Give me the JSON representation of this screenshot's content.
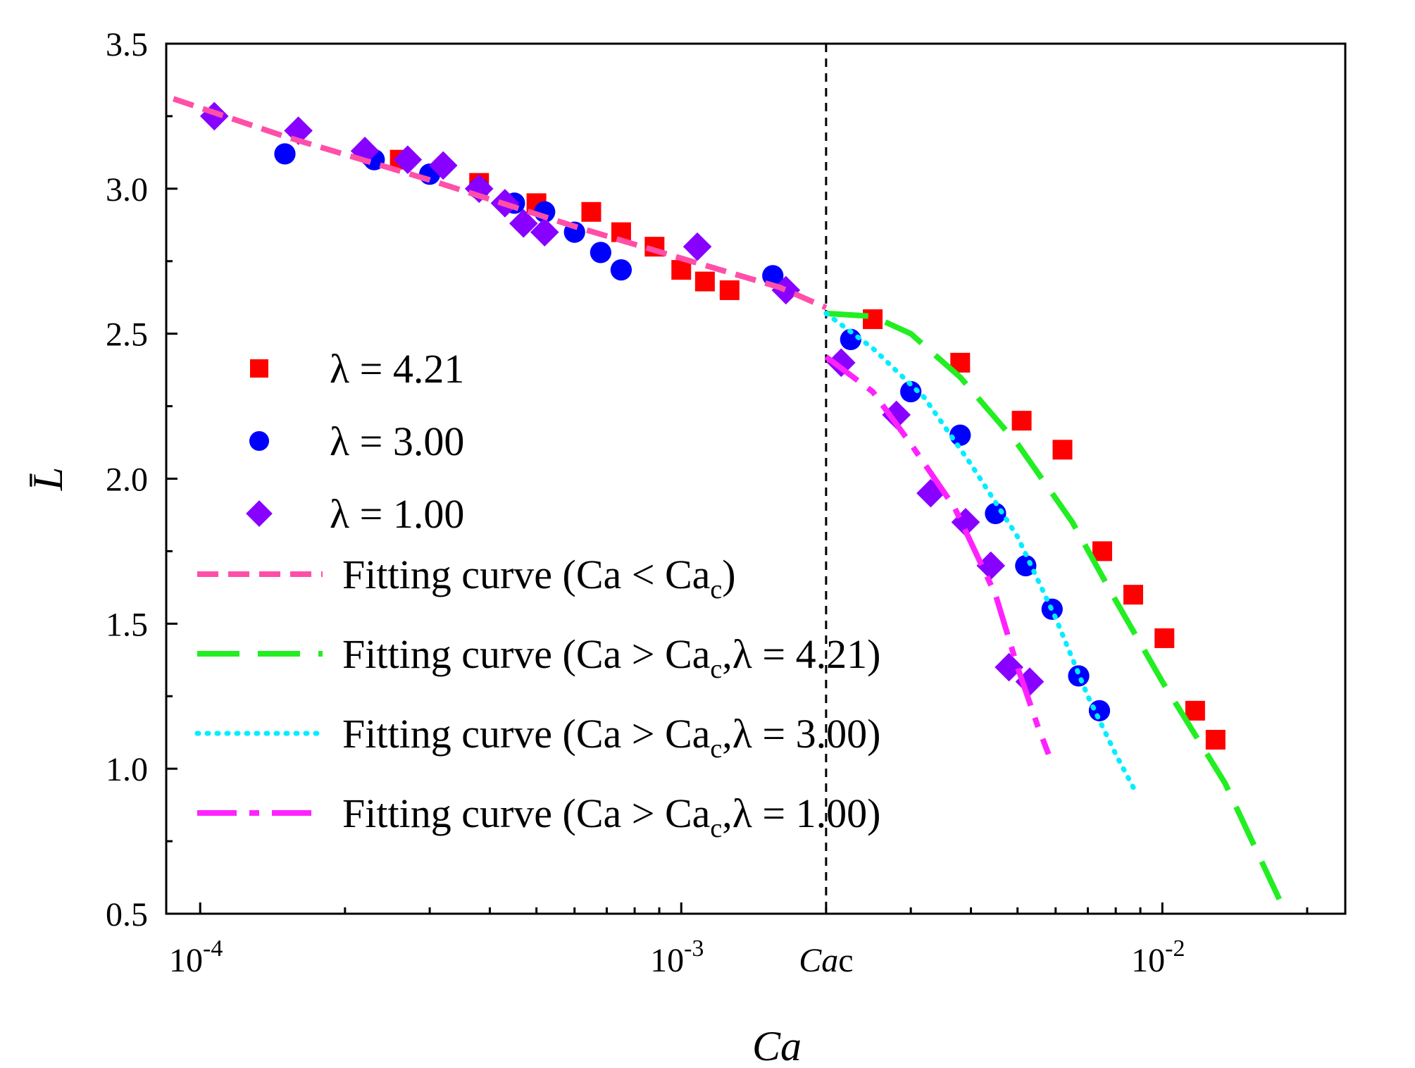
{
  "chart_data": {
    "type": "scatter",
    "x_scale": "log",
    "xlim": [
      8.5e-05,
      0.024
    ],
    "ylim": [
      0.5,
      3.5
    ],
    "xlabel": "Ca",
    "ylabel": "L̄",
    "x_ticks": [
      {
        "value": 0.0001,
        "base": "10",
        "exp": "-4"
      },
      {
        "value": 0.001,
        "base": "10",
        "exp": "-3"
      },
      {
        "value": 0.01,
        "base": "10",
        "exp": "-2"
      }
    ],
    "x_minor_ticks": [
      0.0002,
      0.0003,
      0.0004,
      0.0005,
      0.0006,
      0.0007,
      0.0008,
      0.0009,
      0.002,
      0.003,
      0.004,
      0.005,
      0.006,
      0.007,
      0.008,
      0.009,
      0.02
    ],
    "y_ticks": [
      "0.5",
      "1.0",
      "1.5",
      "2.0",
      "2.5",
      "3.0",
      "3.5"
    ],
    "critical_line": {
      "x": 0.002,
      "label_italic": "Ca",
      "label_sub": "c"
    },
    "series": [
      {
        "name": "λ = 4.21",
        "marker": "square",
        "color": "#ff0000",
        "points": [
          [
            0.00026,
            3.1
          ],
          [
            0.00038,
            3.02
          ],
          [
            0.0005,
            2.95
          ],
          [
            0.00065,
            2.92
          ],
          [
            0.00075,
            2.85
          ],
          [
            0.00088,
            2.8
          ],
          [
            0.001,
            2.72
          ],
          [
            0.00112,
            2.68
          ],
          [
            0.00126,
            2.65
          ],
          [
            0.0025,
            2.55
          ],
          [
            0.0038,
            2.4
          ],
          [
            0.0051,
            2.2
          ],
          [
            0.0062,
            2.1
          ],
          [
            0.0075,
            1.75
          ],
          [
            0.0087,
            1.6
          ],
          [
            0.0101,
            1.45
          ],
          [
            0.0117,
            1.2
          ],
          [
            0.0129,
            1.1
          ]
        ]
      },
      {
        "name": "λ = 3.00",
        "marker": "circle",
        "color": "#0000ff",
        "points": [
          [
            0.00015,
            3.12
          ],
          [
            0.00023,
            3.1
          ],
          [
            0.0003,
            3.05
          ],
          [
            0.00038,
            3.0
          ],
          [
            0.00045,
            2.95
          ],
          [
            0.00052,
            2.92
          ],
          [
            0.0006,
            2.85
          ],
          [
            0.00068,
            2.78
          ],
          [
            0.00075,
            2.72
          ],
          [
            0.00155,
            2.7
          ],
          [
            0.00225,
            2.48
          ],
          [
            0.003,
            2.3
          ],
          [
            0.0038,
            2.15
          ],
          [
            0.0045,
            1.88
          ],
          [
            0.0052,
            1.7
          ],
          [
            0.0059,
            1.55
          ],
          [
            0.0067,
            1.32
          ],
          [
            0.0074,
            1.2
          ]
        ]
      },
      {
        "name": "λ = 1.00",
        "marker": "diamond",
        "color": "#8800ff",
        "points": [
          [
            0.000107,
            3.25
          ],
          [
            0.00016,
            3.2
          ],
          [
            0.00022,
            3.13
          ],
          [
            0.00027,
            3.1
          ],
          [
            0.00032,
            3.08
          ],
          [
            0.00038,
            3.0
          ],
          [
            0.00043,
            2.95
          ],
          [
            0.00047,
            2.88
          ],
          [
            0.00052,
            2.85
          ],
          [
            0.00108,
            2.8
          ],
          [
            0.00165,
            2.65
          ],
          [
            0.00215,
            2.4
          ],
          [
            0.0028,
            2.22
          ],
          [
            0.0033,
            1.95
          ],
          [
            0.0039,
            1.85
          ],
          [
            0.0044,
            1.7
          ],
          [
            0.0048,
            1.35
          ],
          [
            0.0053,
            1.3
          ]
        ]
      }
    ],
    "fits": [
      {
        "name": "Fitting curve (Ca < Ca",
        "subscript": "c",
        "tail": ")",
        "color": "#ff4fa8",
        "style": "short-dash",
        "points": [
          [
            8.8e-05,
            3.31
          ],
          [
            0.00015,
            3.18
          ],
          [
            0.0003,
            3.03
          ],
          [
            0.0006,
            2.87
          ],
          [
            0.001,
            2.76
          ],
          [
            0.0016,
            2.66
          ],
          [
            0.002,
            2.59
          ]
        ]
      },
      {
        "name": "Fitting curve (Ca > Ca",
        "subscript": "c",
        "tail": ",λ = 4.21)",
        "color": "#22ee22",
        "style": "long-dash",
        "points": [
          [
            0.002,
            2.57
          ],
          [
            0.0025,
            2.56
          ],
          [
            0.003,
            2.5
          ],
          [
            0.0038,
            2.35
          ],
          [
            0.005,
            2.12
          ],
          [
            0.0065,
            1.85
          ],
          [
            0.008,
            1.58
          ],
          [
            0.01,
            1.3
          ],
          [
            0.0135,
            0.95
          ],
          [
            0.0175,
            0.55
          ]
        ]
      },
      {
        "name": "Fitting curve (Ca > Ca",
        "subscript": "c",
        "tail": ",λ = 3.00)",
        "color": "#00eeff",
        "style": "dotted",
        "points": [
          [
            0.002,
            2.57
          ],
          [
            0.0025,
            2.45
          ],
          [
            0.0032,
            2.28
          ],
          [
            0.004,
            2.05
          ],
          [
            0.005,
            1.8
          ],
          [
            0.006,
            1.52
          ],
          [
            0.007,
            1.25
          ],
          [
            0.008,
            1.05
          ],
          [
            0.0088,
            0.92
          ]
        ]
      },
      {
        "name": "Fitting curve (Ca > Ca",
        "subscript": "c",
        "tail": ",λ = 1.00)",
        "color": "#ff22ff",
        "style": "dash-dot",
        "points": [
          [
            0.002,
            2.42
          ],
          [
            0.0025,
            2.3
          ],
          [
            0.003,
            2.12
          ],
          [
            0.0037,
            1.9
          ],
          [
            0.0045,
            1.6
          ],
          [
            0.005,
            1.35
          ],
          [
            0.0055,
            1.15
          ],
          [
            0.0058,
            1.05
          ]
        ]
      }
    ]
  }
}
